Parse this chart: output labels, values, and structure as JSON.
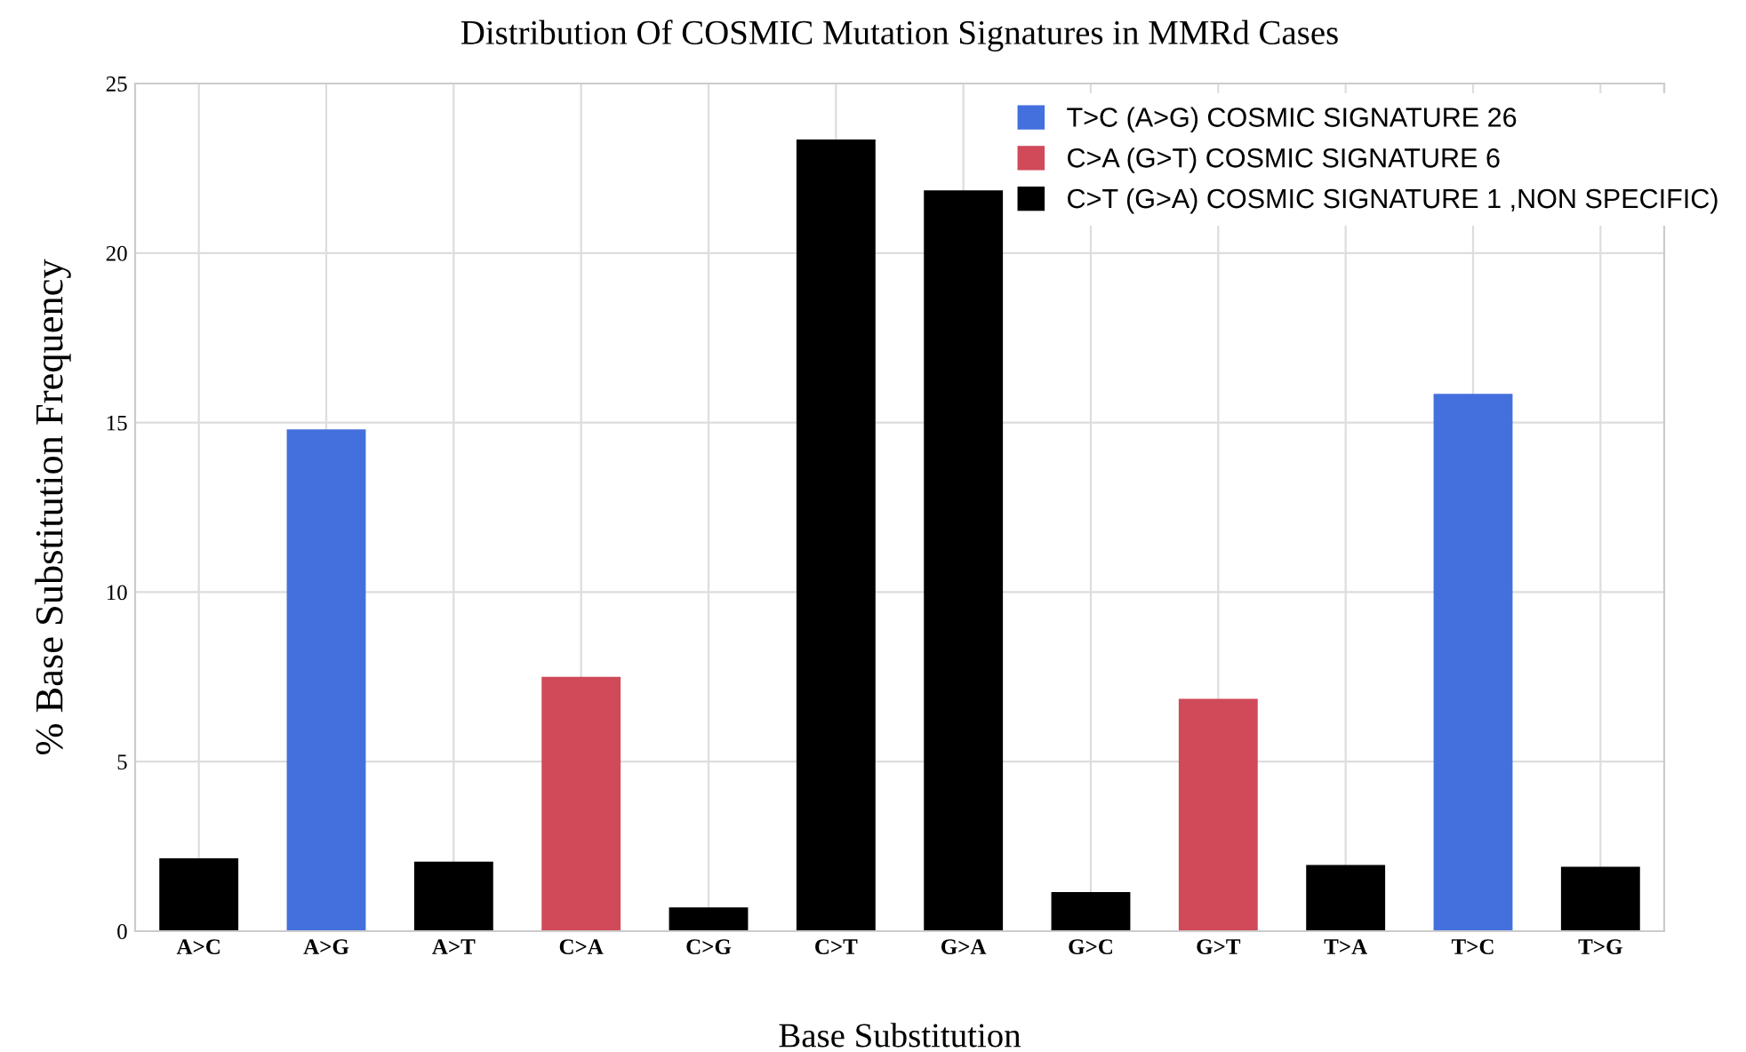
{
  "chart_data": {
    "type": "bar",
    "title": "Distribution Of COSMIC Mutation Signatures in MMRd Cases",
    "xlabel": "Base Substitution",
    "ylabel": "% Base Substitution Frequency",
    "categories": [
      "A>C",
      "A>G",
      "A>T",
      "C>A",
      "C>G",
      "C>T",
      "G>A",
      "G>C",
      "G>T",
      "T>A",
      "T>C",
      "T>G"
    ],
    "series": [
      {
        "name": "T>C (A>G) COSMIC SIGNATURE 26",
        "color": "#4370dc",
        "values": [
          null,
          14.8,
          null,
          null,
          null,
          null,
          null,
          null,
          null,
          null,
          15.85,
          null
        ]
      },
      {
        "name": "C>A (G>T) COSMIC SIGNATURE 6",
        "color": "#d04a5a",
        "values": [
          null,
          null,
          null,
          7.5,
          null,
          null,
          null,
          null,
          6.85,
          null,
          null,
          null
        ]
      },
      {
        "name": "C>T (G>A) COSMIC SIGNATURE 1 ,NON SPECIFIC)",
        "color": "#000000",
        "values": [
          2.15,
          null,
          2.05,
          null,
          0.7,
          23.35,
          21.85,
          1.15,
          null,
          1.95,
          null,
          1.9
        ]
      }
    ],
    "ylim": [
      0,
      25
    ],
    "yticks": [
      0,
      5,
      10,
      15,
      20,
      25
    ],
    "grid": true,
    "legend": "top right"
  }
}
